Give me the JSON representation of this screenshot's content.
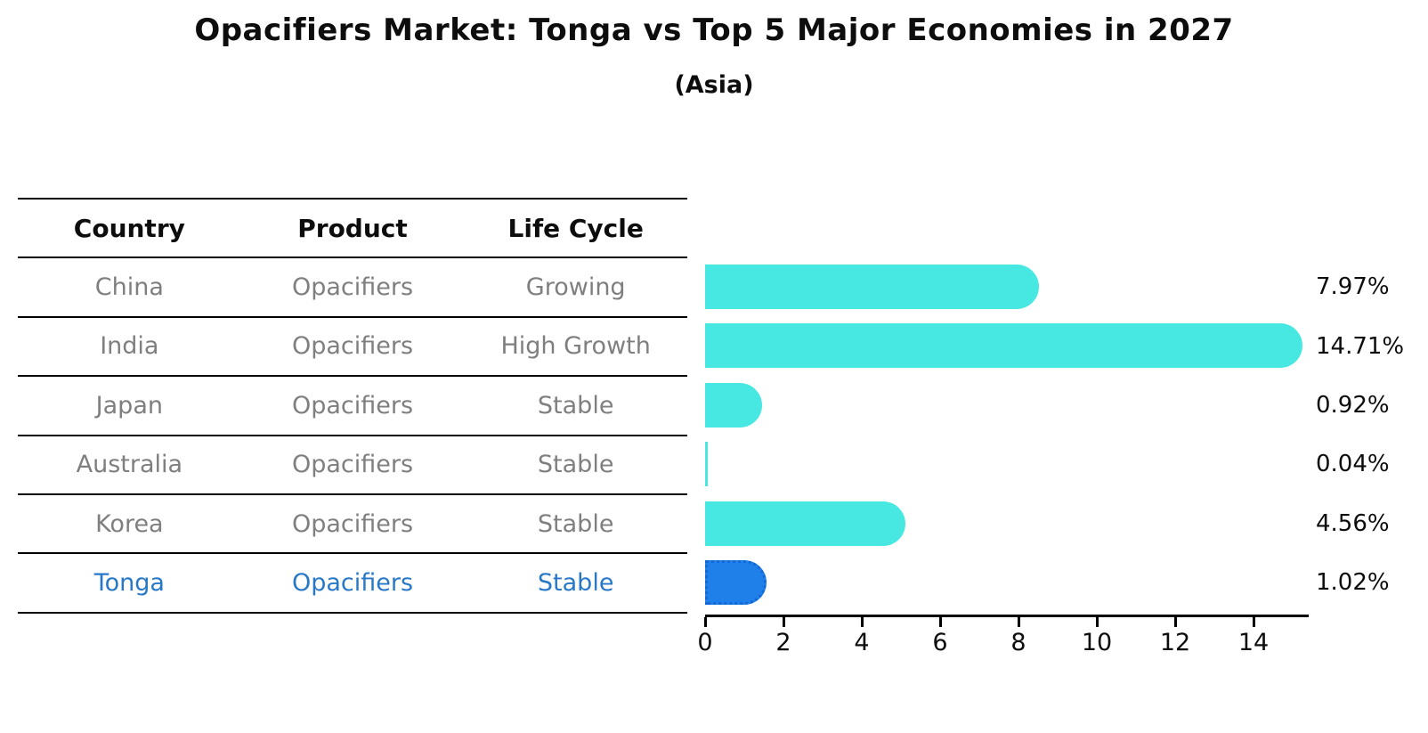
{
  "title": "Opacifiers Market: Tonga vs Top 5 Major Economies in 2027",
  "subtitle": "(Asia)",
  "table": {
    "headers": [
      "Country",
      "Product",
      "Life Cycle"
    ],
    "rows": [
      {
        "country": "China",
        "product": "Opacifiers",
        "life_cycle": "Growing",
        "highlight": false
      },
      {
        "country": "India",
        "product": "Opacifiers",
        "life_cycle": "High Growth",
        "highlight": false
      },
      {
        "country": "Japan",
        "product": "Opacifiers",
        "life_cycle": "Stable",
        "highlight": false
      },
      {
        "country": "Australia",
        "product": "Opacifiers",
        "life_cycle": "Stable",
        "highlight": false
      },
      {
        "country": "Korea",
        "product": "Opacifiers",
        "life_cycle": "Stable",
        "highlight": false
      },
      {
        "country": "Tonga",
        "product": "Opacifiers",
        "life_cycle": "Stable",
        "highlight": true
      }
    ]
  },
  "chart_data": {
    "type": "bar",
    "orientation": "horizontal",
    "title": "Opacifiers Market: Tonga vs Top 5 Major Economies in 2027",
    "subtitle": "(Asia)",
    "categories": [
      "China",
      "India",
      "Japan",
      "Australia",
      "Korea",
      "Tonga"
    ],
    "values": [
      7.97,
      14.71,
      0.92,
      0.04,
      4.56,
      1.02
    ],
    "value_labels": [
      "7.97%",
      "14.71%",
      "0.92%",
      "0.04%",
      "4.56%",
      "1.02%"
    ],
    "xlabel": "",
    "ylabel": "",
    "xlim": [
      0,
      15.4
    ],
    "xticks": [
      0,
      2,
      4,
      6,
      8,
      10,
      12,
      14
    ],
    "grid": false,
    "legend": false,
    "highlight_index": 5
  },
  "colors": {
    "bar_cyan": "#48e8e2",
    "bar_blue": "#1e80e8",
    "bar_blue_edge": "#1467d6",
    "highlight_text": "#2878c8",
    "row_text": "#7f7f7f",
    "heading_text": "#0d0d0d",
    "axis_line": "#000000"
  }
}
